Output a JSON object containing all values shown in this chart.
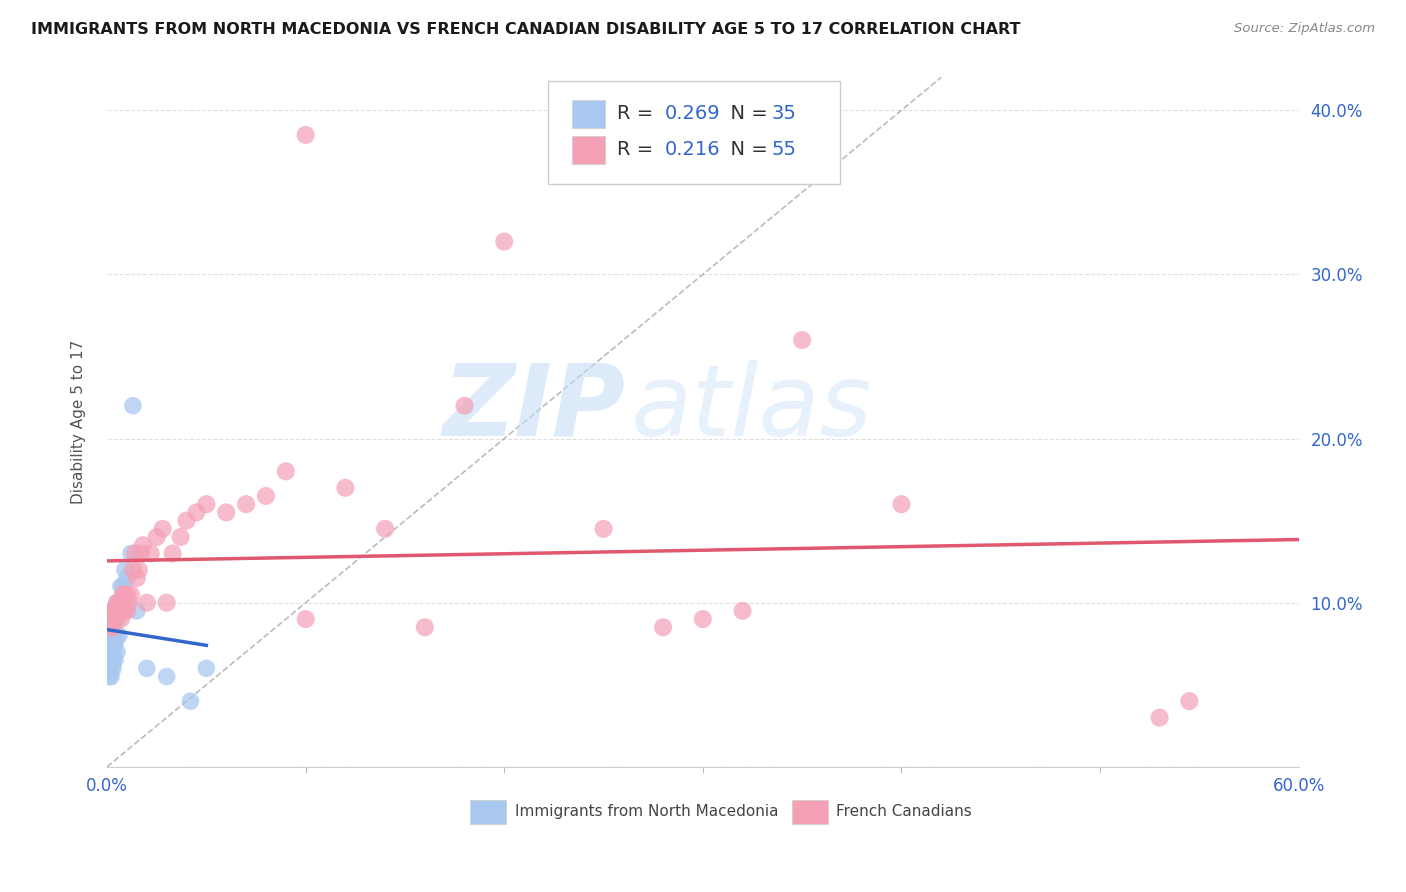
{
  "title": "IMMIGRANTS FROM NORTH MACEDONIA VS FRENCH CANADIAN DISABILITY AGE 5 TO 17 CORRELATION CHART",
  "source": "Source: ZipAtlas.com",
  "ylabel": "Disability Age 5 to 17",
  "xlim": [
    0.0,
    0.6
  ],
  "ylim": [
    0.0,
    0.42
  ],
  "xticks": [
    0.0,
    0.6
  ],
  "xticklabels": [
    "0.0%",
    "60.0%"
  ],
  "yticks": [
    0.0,
    0.1,
    0.2,
    0.3,
    0.4
  ],
  "yticklabels_right": [
    "",
    "10.0%",
    "20.0%",
    "30.0%",
    "40.0%"
  ],
  "blue_R": 0.269,
  "blue_N": 35,
  "pink_R": 0.216,
  "pink_N": 55,
  "blue_color": "#a8c8f0",
  "pink_color": "#f4a0b5",
  "blue_line_color": "#3366cc",
  "pink_line_color": "#e05870",
  "diag_line_color": "#aaaaaa",
  "legend_label_blue": "Immigrants from North Macedonia",
  "legend_label_pink": "French Canadians",
  "blue_x": [
    0.001,
    0.001,
    0.001,
    0.001,
    0.002,
    0.002,
    0.002,
    0.002,
    0.002,
    0.003,
    0.003,
    0.003,
    0.003,
    0.003,
    0.003,
    0.004,
    0.004,
    0.004,
    0.004,
    0.005,
    0.005,
    0.005,
    0.006,
    0.006,
    0.007,
    0.008,
    0.009,
    0.01,
    0.012,
    0.013,
    0.015,
    0.02,
    0.03,
    0.042,
    0.05
  ],
  "blue_y": [
    0.055,
    0.06,
    0.065,
    0.07,
    0.055,
    0.06,
    0.065,
    0.07,
    0.075,
    0.06,
    0.065,
    0.07,
    0.075,
    0.08,
    0.09,
    0.065,
    0.075,
    0.08,
    0.09,
    0.07,
    0.08,
    0.1,
    0.08,
    0.1,
    0.11,
    0.11,
    0.12,
    0.115,
    0.13,
    0.22,
    0.095,
    0.06,
    0.055,
    0.04,
    0.06
  ],
  "pink_x": [
    0.002,
    0.002,
    0.003,
    0.003,
    0.004,
    0.004,
    0.005,
    0.005,
    0.006,
    0.006,
    0.007,
    0.007,
    0.008,
    0.008,
    0.009,
    0.009,
    0.01,
    0.01,
    0.011,
    0.012,
    0.013,
    0.014,
    0.015,
    0.016,
    0.017,
    0.018,
    0.02,
    0.022,
    0.025,
    0.028,
    0.03,
    0.033,
    0.037,
    0.04,
    0.045,
    0.05,
    0.06,
    0.07,
    0.08,
    0.09,
    0.1,
    0.12,
    0.14,
    0.16,
    0.18,
    0.2,
    0.25,
    0.3,
    0.35,
    0.4,
    0.32,
    0.28,
    0.53,
    0.545,
    0.1
  ],
  "pink_y": [
    0.085,
    0.095,
    0.085,
    0.095,
    0.09,
    0.095,
    0.09,
    0.1,
    0.095,
    0.1,
    0.09,
    0.1,
    0.095,
    0.105,
    0.095,
    0.105,
    0.095,
    0.105,
    0.1,
    0.105,
    0.12,
    0.13,
    0.115,
    0.12,
    0.13,
    0.135,
    0.1,
    0.13,
    0.14,
    0.145,
    0.1,
    0.13,
    0.14,
    0.15,
    0.155,
    0.16,
    0.155,
    0.16,
    0.165,
    0.18,
    0.09,
    0.17,
    0.145,
    0.085,
    0.22,
    0.32,
    0.145,
    0.09,
    0.26,
    0.16,
    0.095,
    0.085,
    0.03,
    0.04,
    0.385
  ],
  "watermark_zip": "ZIP",
  "watermark_atlas": "atlas",
  "background_color": "#ffffff",
  "grid_color": "#dddddd"
}
